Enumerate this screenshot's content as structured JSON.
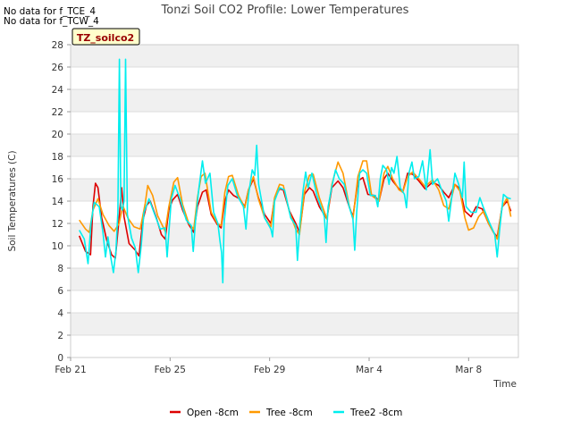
{
  "notes": [
    "No data for f_TCE_4",
    "No data for f_TCW_4"
  ],
  "chart_data": {
    "type": "line",
    "title": "Tonzi Soil CO2 Profile: Lower Temperatures",
    "xlabel": "Time",
    "ylabel": "Soil Temperatures (C)",
    "site_label": "TZ_soilco2",
    "x_ticks": [
      {
        "label": "Feb 21",
        "day": 0
      },
      {
        "label": "Feb 25",
        "day": 4
      },
      {
        "label": "Feb 29",
        "day": 8
      },
      {
        "label": "Mar 4",
        "day": 12
      },
      {
        "label": "Mar 8",
        "day": 16
      }
    ],
    "xlim": [
      0,
      18
    ],
    "ylim": [
      0,
      28
    ],
    "y_ticks": [
      0,
      2,
      4,
      6,
      8,
      10,
      12,
      14,
      16,
      18,
      20,
      22,
      24,
      26,
      28
    ],
    "grid": "horizontal bands",
    "legend_position": "bottom",
    "series": [
      {
        "name": "Open -8cm",
        "color": "#dd0000",
        "points": [
          [
            0.35,
            10.9
          ],
          [
            0.6,
            9.5
          ],
          [
            0.8,
            9.2
          ],
          [
            0.9,
            13.5
          ],
          [
            1.0,
            15.6
          ],
          [
            1.1,
            15.2
          ],
          [
            1.25,
            12.5
          ],
          [
            1.45,
            10.5
          ],
          [
            1.65,
            9.2
          ],
          [
            1.8,
            8.9
          ],
          [
            1.95,
            12.5
          ],
          [
            2.05,
            15.2
          ],
          [
            2.15,
            12.6
          ],
          [
            2.35,
            10.2
          ],
          [
            2.6,
            9.6
          ],
          [
            2.75,
            9.1
          ],
          [
            2.9,
            12.2
          ],
          [
            3.05,
            13.6
          ],
          [
            3.2,
            14.0
          ],
          [
            3.45,
            12.5
          ],
          [
            3.65,
            11.0
          ],
          [
            3.8,
            10.6
          ],
          [
            3.95,
            13.2
          ],
          [
            4.1,
            14.1
          ],
          [
            4.3,
            14.6
          ],
          [
            4.5,
            13.2
          ],
          [
            4.75,
            11.9
          ],
          [
            4.95,
            11.2
          ],
          [
            5.1,
            13.5
          ],
          [
            5.3,
            14.8
          ],
          [
            5.45,
            15.0
          ],
          [
            5.65,
            12.8
          ],
          [
            5.9,
            11.9
          ],
          [
            6.05,
            11.6
          ],
          [
            6.2,
            14.0
          ],
          [
            6.35,
            15.0
          ],
          [
            6.55,
            14.5
          ],
          [
            6.8,
            14.2
          ],
          [
            7.0,
            13.5
          ],
          [
            7.15,
            15.0
          ],
          [
            7.35,
            16.0
          ],
          [
            7.55,
            14.3
          ],
          [
            7.8,
            12.8
          ],
          [
            8.05,
            12.0
          ],
          [
            8.2,
            14.2
          ],
          [
            8.4,
            15.1
          ],
          [
            8.55,
            15.0
          ],
          [
            8.8,
            13.1
          ],
          [
            9.05,
            12.0
          ],
          [
            9.2,
            11.2
          ],
          [
            9.4,
            14.6
          ],
          [
            9.6,
            15.2
          ],
          [
            9.75,
            14.9
          ],
          [
            10.0,
            13.5
          ],
          [
            10.3,
            12.4
          ],
          [
            10.5,
            15.2
          ],
          [
            10.75,
            15.8
          ],
          [
            10.95,
            15.2
          ],
          [
            11.2,
            13.5
          ],
          [
            11.35,
            12.6
          ],
          [
            11.55,
            15.8
          ],
          [
            11.75,
            16.1
          ],
          [
            11.95,
            14.6
          ],
          [
            12.2,
            14.5
          ],
          [
            12.4,
            14.0
          ],
          [
            12.6,
            16.0
          ],
          [
            12.75,
            16.5
          ],
          [
            12.95,
            15.8
          ],
          [
            13.2,
            15.1
          ],
          [
            13.35,
            14.8
          ],
          [
            13.55,
            16.5
          ],
          [
            13.75,
            16.4
          ],
          [
            14.0,
            15.8
          ],
          [
            14.25,
            15.1
          ],
          [
            14.55,
            15.7
          ],
          [
            14.8,
            15.4
          ],
          [
            15.0,
            14.8
          ],
          [
            15.2,
            14.3
          ],
          [
            15.45,
            15.5
          ],
          [
            15.65,
            15.1
          ],
          [
            15.85,
            13.1
          ],
          [
            16.1,
            12.6
          ],
          [
            16.3,
            13.5
          ],
          [
            16.55,
            13.3
          ],
          [
            16.8,
            12.0
          ],
          [
            17.0,
            11.2
          ],
          [
            17.15,
            10.8
          ],
          [
            17.35,
            13.5
          ],
          [
            17.55,
            14.0
          ],
          [
            17.7,
            13.1
          ]
        ]
      },
      {
        "name": "Tree -8cm",
        "color": "#ff9900",
        "points": [
          [
            0.35,
            12.3
          ],
          [
            0.6,
            11.5
          ],
          [
            0.75,
            11.2
          ],
          [
            0.9,
            13.2
          ],
          [
            1.1,
            14.2
          ],
          [
            1.3,
            12.8
          ],
          [
            1.55,
            11.8
          ],
          [
            1.75,
            11.3
          ],
          [
            1.95,
            12.0
          ],
          [
            2.1,
            13.6
          ],
          [
            2.3,
            12.5
          ],
          [
            2.55,
            11.7
          ],
          [
            2.8,
            11.5
          ],
          [
            3.0,
            13.8
          ],
          [
            3.1,
            15.4
          ],
          [
            3.3,
            14.5
          ],
          [
            3.5,
            12.7
          ],
          [
            3.8,
            11.3
          ],
          [
            3.95,
            13.5
          ],
          [
            4.15,
            15.7
          ],
          [
            4.3,
            16.1
          ],
          [
            4.5,
            13.7
          ],
          [
            4.75,
            12.0
          ],
          [
            4.95,
            11.5
          ],
          [
            5.1,
            14.3
          ],
          [
            5.25,
            16.2
          ],
          [
            5.4,
            16.5
          ],
          [
            5.65,
            13.0
          ],
          [
            5.9,
            12.0
          ],
          [
            6.05,
            11.8
          ],
          [
            6.2,
            14.8
          ],
          [
            6.35,
            16.2
          ],
          [
            6.5,
            16.3
          ],
          [
            6.75,
            14.5
          ],
          [
            7.0,
            13.4
          ],
          [
            7.15,
            15.0
          ],
          [
            7.35,
            16.2
          ],
          [
            7.55,
            14.2
          ],
          [
            7.8,
            12.5
          ],
          [
            8.05,
            11.7
          ],
          [
            8.2,
            14.3
          ],
          [
            8.4,
            15.5
          ],
          [
            8.55,
            15.4
          ],
          [
            8.8,
            13.0
          ],
          [
            9.05,
            11.5
          ],
          [
            9.2,
            11.0
          ],
          [
            9.4,
            14.8
          ],
          [
            9.6,
            16.3
          ],
          [
            9.75,
            16.4
          ],
          [
            10.0,
            14.3
          ],
          [
            10.3,
            12.4
          ],
          [
            10.5,
            15.5
          ],
          [
            10.75,
            17.5
          ],
          [
            10.95,
            16.5
          ],
          [
            11.2,
            13.6
          ],
          [
            11.35,
            12.4
          ],
          [
            11.55,
            16.2
          ],
          [
            11.75,
            17.6
          ],
          [
            11.9,
            17.6
          ],
          [
            12.1,
            14.5
          ],
          [
            12.4,
            14.0
          ],
          [
            12.6,
            16.5
          ],
          [
            12.75,
            17.1
          ],
          [
            12.95,
            16.0
          ],
          [
            13.2,
            15.0
          ],
          [
            13.35,
            14.8
          ],
          [
            13.55,
            16.2
          ],
          [
            13.75,
            16.6
          ],
          [
            14.0,
            16.0
          ],
          [
            14.25,
            15.3
          ],
          [
            14.55,
            15.9
          ],
          [
            14.8,
            15.0
          ],
          [
            15.0,
            13.6
          ],
          [
            15.2,
            13.3
          ],
          [
            15.45,
            15.5
          ],
          [
            15.65,
            14.9
          ],
          [
            15.85,
            12.5
          ],
          [
            16.0,
            11.4
          ],
          [
            16.2,
            11.6
          ],
          [
            16.4,
            12.6
          ],
          [
            16.6,
            13.1
          ],
          [
            16.8,
            12.0
          ],
          [
            17.0,
            11.2
          ],
          [
            17.15,
            10.6
          ],
          [
            17.35,
            13.5
          ],
          [
            17.55,
            14.3
          ],
          [
            17.7,
            12.6
          ]
        ]
      },
      {
        "name": "Tree2 -8cm",
        "color": "#00eeee",
        "points": [
          [
            0.35,
            11.4
          ],
          [
            0.55,
            10.6
          ],
          [
            0.7,
            8.4
          ],
          [
            0.82,
            12.0
          ],
          [
            0.95,
            13.9
          ],
          [
            1.15,
            13.5
          ],
          [
            1.3,
            11.2
          ],
          [
            1.4,
            9.0
          ],
          [
            1.5,
            10.8
          ],
          [
            1.62,
            8.9
          ],
          [
            1.72,
            7.6
          ],
          [
            1.82,
            9.5
          ],
          [
            1.9,
            13.0
          ],
          [
            1.96,
            26.7
          ],
          [
            2.02,
            13.5
          ],
          [
            2.08,
            13.2
          ],
          [
            2.15,
            14.0
          ],
          [
            2.21,
            26.7
          ],
          [
            2.28,
            12.8
          ],
          [
            2.45,
            10.7
          ],
          [
            2.6,
            9.8
          ],
          [
            2.72,
            7.6
          ],
          [
            2.84,
            10.0
          ],
          [
            2.95,
            13.0
          ],
          [
            3.15,
            14.2
          ],
          [
            3.35,
            13.0
          ],
          [
            3.6,
            11.5
          ],
          [
            3.8,
            11.6
          ],
          [
            3.88,
            9.0
          ],
          [
            3.96,
            11.5
          ],
          [
            4.05,
            14.2
          ],
          [
            4.2,
            15.4
          ],
          [
            4.4,
            14.2
          ],
          [
            4.65,
            12.3
          ],
          [
            4.85,
            11.8
          ],
          [
            4.93,
            9.5
          ],
          [
            5.02,
            12.2
          ],
          [
            5.15,
            15.0
          ],
          [
            5.3,
            17.6
          ],
          [
            5.42,
            15.6
          ],
          [
            5.6,
            16.5
          ],
          [
            5.75,
            13.0
          ],
          [
            5.92,
            12.0
          ],
          [
            6.0,
            10.5
          ],
          [
            6.07,
            9.4
          ],
          [
            6.12,
            6.7
          ],
          [
            6.17,
            12.0
          ],
          [
            6.32,
            15.4
          ],
          [
            6.5,
            16.0
          ],
          [
            6.7,
            14.5
          ],
          [
            6.95,
            13.5
          ],
          [
            7.05,
            11.5
          ],
          [
            7.15,
            14.5
          ],
          [
            7.3,
            16.8
          ],
          [
            7.4,
            16.3
          ],
          [
            7.48,
            19.0
          ],
          [
            7.56,
            15.5
          ],
          [
            7.8,
            12.5
          ],
          [
            8.05,
            11.5
          ],
          [
            8.12,
            10.8
          ],
          [
            8.2,
            14.0
          ],
          [
            8.4,
            15.2
          ],
          [
            8.6,
            15.0
          ],
          [
            8.85,
            12.5
          ],
          [
            9.05,
            11.8
          ],
          [
            9.12,
            8.7
          ],
          [
            9.22,
            12.0
          ],
          [
            9.35,
            15.0
          ],
          [
            9.45,
            16.6
          ],
          [
            9.55,
            15.2
          ],
          [
            9.7,
            16.5
          ],
          [
            9.9,
            14.5
          ],
          [
            10.2,
            12.6
          ],
          [
            10.27,
            10.3
          ],
          [
            10.35,
            13.5
          ],
          [
            10.5,
            15.3
          ],
          [
            10.65,
            16.8
          ],
          [
            10.8,
            16.0
          ],
          [
            11.0,
            15.5
          ],
          [
            11.2,
            13.5
          ],
          [
            11.35,
            12.4
          ],
          [
            11.42,
            9.6
          ],
          [
            11.5,
            13.0
          ],
          [
            11.62,
            16.5
          ],
          [
            11.75,
            16.8
          ],
          [
            11.9,
            16.5
          ],
          [
            12.05,
            14.5
          ],
          [
            12.25,
            14.5
          ],
          [
            12.35,
            13.5
          ],
          [
            12.45,
            16.0
          ],
          [
            12.55,
            17.2
          ],
          [
            12.7,
            16.8
          ],
          [
            12.8,
            15.5
          ],
          [
            12.9,
            17.0
          ],
          [
            13.0,
            16.5
          ],
          [
            13.12,
            18.0
          ],
          [
            13.25,
            15.2
          ],
          [
            13.42,
            14.6
          ],
          [
            13.5,
            13.4
          ],
          [
            13.6,
            16.5
          ],
          [
            13.72,
            17.5
          ],
          [
            13.82,
            16.0
          ],
          [
            14.0,
            16.2
          ],
          [
            14.15,
            17.6
          ],
          [
            14.3,
            15.0
          ],
          [
            14.45,
            18.6
          ],
          [
            14.55,
            15.5
          ],
          [
            14.75,
            16.0
          ],
          [
            14.95,
            14.8
          ],
          [
            15.1,
            14.0
          ],
          [
            15.2,
            12.2
          ],
          [
            15.3,
            14.0
          ],
          [
            15.45,
            16.5
          ],
          [
            15.6,
            15.5
          ],
          [
            15.75,
            14.3
          ],
          [
            15.82,
            17.5
          ],
          [
            15.9,
            13.5
          ],
          [
            16.1,
            13.0
          ],
          [
            16.3,
            13.0
          ],
          [
            16.45,
            14.3
          ],
          [
            16.6,
            13.4
          ],
          [
            16.85,
            12.0
          ],
          [
            17.05,
            11.0
          ],
          [
            17.15,
            9.0
          ],
          [
            17.25,
            11.5
          ],
          [
            17.4,
            14.6
          ],
          [
            17.55,
            14.3
          ],
          [
            17.7,
            14.2
          ]
        ]
      }
    ]
  }
}
